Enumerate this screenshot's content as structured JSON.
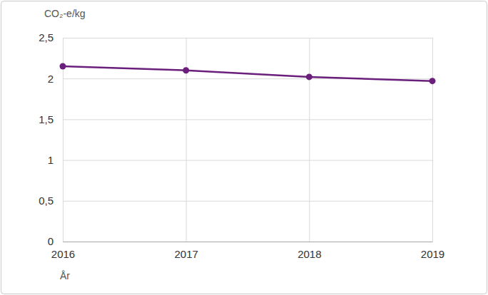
{
  "chart_data": {
    "type": "line",
    "y_label": "CO₂-e/kg",
    "x_label": "År",
    "x": [
      2016,
      2017,
      2018,
      2019
    ],
    "values": [
      2.15,
      2.1,
      2.02,
      1.97
    ],
    "color": "#6b1f7c",
    "marker": "circle",
    "xlim": [
      2016,
      2019
    ],
    "xticks": [
      2016,
      2017,
      2018,
      2019
    ],
    "ylim": [
      0,
      2.5
    ],
    "yticks": [
      0,
      {
        "value": 0.5,
        "label": "0,5"
      },
      1,
      {
        "value": 1.5,
        "label": "1,5"
      },
      2,
      {
        "value": 2.5,
        "label": "2,5"
      }
    ],
    "grid": true
  }
}
